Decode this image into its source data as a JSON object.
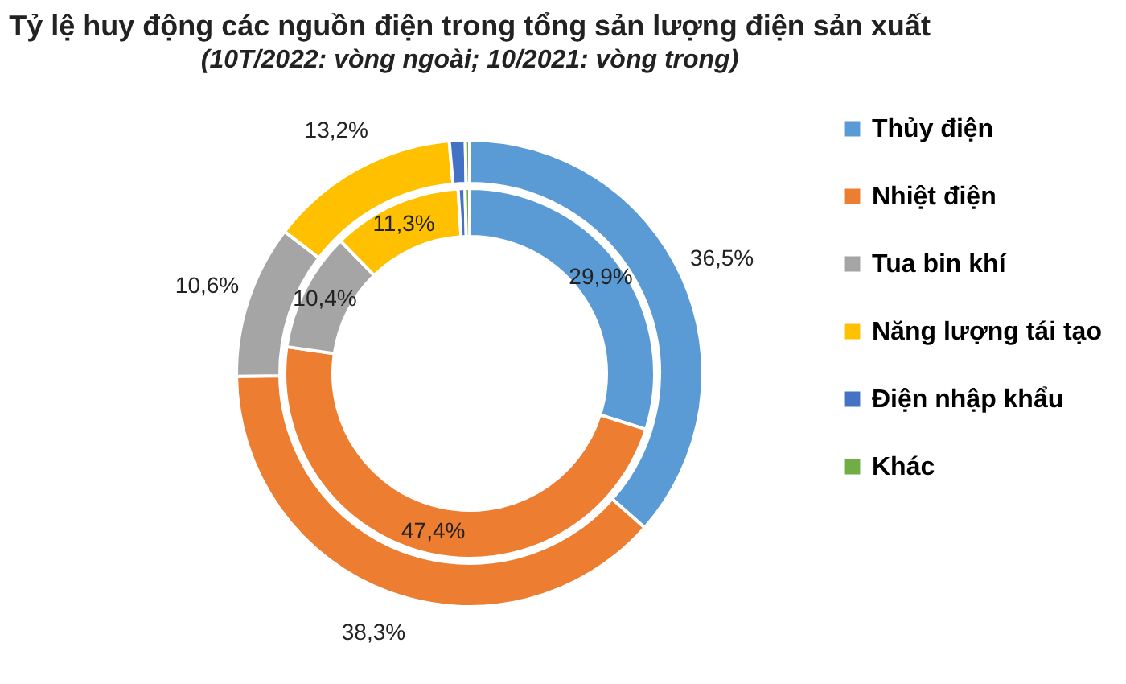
{
  "chart_data": {
    "type": "donut",
    "title": "Tỷ lệ huy động các nguồn điện trong tổng sản lượng điện sản xuất",
    "subtitle": "(10T/2022: vòng ngoài; 10/2021: vòng trong)",
    "categories": [
      "Thủy điện",
      "Nhiệt điện",
      "Tua bin khí",
      "Năng lượng tái tạo",
      "Điện nhập khẩu",
      "Khác"
    ],
    "colors": [
      "#5b9bd5",
      "#ed7d31",
      "#a5a5a5",
      "#ffc000",
      "#4472c4",
      "#70ad47"
    ],
    "series": [
      {
        "values": [
          36.5,
          38.3,
          10.6,
          13.2,
          1.1,
          0.3
        ],
        "value_labels": [
          "36,5%",
          "38,3%",
          "10,6%",
          "13,2%",
          null,
          null
        ]
      },
      {
        "values": [
          29.9,
          47.4,
          10.4,
          11.3,
          0.6,
          0.4
        ],
        "value_labels": [
          "29,9%",
          "47,4%",
          "10,4%",
          "11,3%",
          null,
          null
        ]
      }
    ],
    "legend": "right"
  }
}
